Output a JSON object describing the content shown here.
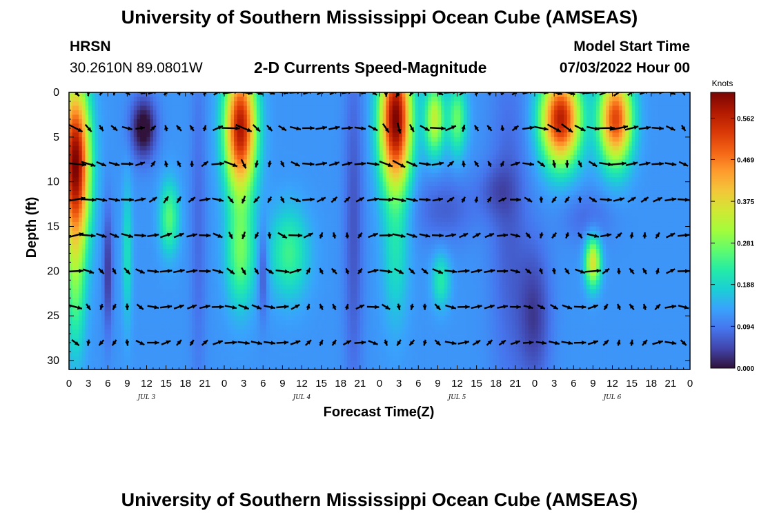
{
  "header": {
    "title": "University of Southern Mississippi Ocean Cube (AMSEAS)",
    "station": "HRSN",
    "coords": "30.2610N  89.0801W",
    "plot_title": "2-D Currents Speed-Magnitude",
    "model_start_label": "Model Start Time",
    "model_start_value": "07/03/2022 Hour 00"
  },
  "footer": {
    "repeated_title": "University of Southern Mississippi Ocean Cube (AMSEAS)"
  },
  "colors": {
    "background": "#ffffff",
    "arrow": "#000000",
    "colormap": [
      "#30123b",
      "#4145ab",
      "#4675ed",
      "#39a2fc",
      "#1bcfd4",
      "#24eca6",
      "#61fc6c",
      "#a4fc3b",
      "#d1e834",
      "#f3c63a",
      "#fe9b2d",
      "#f36315",
      "#d93806",
      "#b11901",
      "#7a0403"
    ]
  },
  "chart_data": {
    "type": "heatmap",
    "title": "2-D Currents Speed-Magnitude",
    "xlabel": "Forecast Time(Z)",
    "ylabel": "Depth (ft)",
    "xlim": [
      0,
      96
    ],
    "ylim": [
      0,
      31
    ],
    "y_inverted": true,
    "x_tick_labels": [
      "0",
      "3",
      "6",
      "9",
      "12",
      "15",
      "18",
      "21",
      "0",
      "3",
      "6",
      "9",
      "12",
      "15",
      "18",
      "21",
      "0",
      "3",
      "6",
      "9",
      "12",
      "15",
      "18",
      "21",
      "0",
      "3",
      "6",
      "9",
      "12",
      "15",
      "18",
      "21",
      "0"
    ],
    "y_ticks": [
      0,
      5,
      10,
      15,
      20,
      25,
      30
    ],
    "date_labels": [
      {
        "label": "JUL 3",
        "hour": 12
      },
      {
        "label": "JUL 4",
        "hour": 36
      },
      {
        "label": "JUL 5",
        "hour": 60
      },
      {
        "label": "JUL 6",
        "hour": 84
      }
    ],
    "colorbar": {
      "unit": "Knots",
      "min": 0.0,
      "max": 0.62,
      "tick_labels": [
        "0.562",
        "0.469",
        "0.375",
        "0.281",
        "0.188",
        "0.094",
        "0.000"
      ],
      "tick_values": [
        0.562,
        0.469,
        0.375,
        0.281,
        0.188,
        0.094,
        0.0
      ]
    },
    "vector_depths": [
      0,
      4,
      8,
      12,
      16,
      20,
      24,
      28
    ],
    "vector_hours_step": 2,
    "speed_model": {
      "description": "approximate speed field (knots) = base + sum of blobs",
      "base": 0.12,
      "blobs": [
        {
          "h": 1,
          "d": 8,
          "sh": 2.2,
          "sd": 9,
          "a": 0.5
        },
        {
          "h": 1,
          "d": 22,
          "sh": 1.6,
          "sd": 8,
          "a": 0.12
        },
        {
          "h": 11.5,
          "d": 4,
          "sh": 2,
          "sd": 3.5,
          "a": -0.14
        },
        {
          "h": 6,
          "d": 20,
          "sh": 0.7,
          "sd": 7,
          "a": -0.09
        },
        {
          "h": 9,
          "d": 18,
          "sh": 0.8,
          "sd": 8,
          "a": 0.08
        },
        {
          "h": 15.5,
          "d": 14,
          "sh": 1.5,
          "sd": 4,
          "a": 0.14
        },
        {
          "h": 20,
          "d": 15,
          "sh": 1.2,
          "sd": 20,
          "a": -0.04
        },
        {
          "h": 26.5,
          "d": 4,
          "sh": 2.4,
          "sd": 7,
          "a": 0.46
        },
        {
          "h": 26.5,
          "d": 18,
          "sh": 2.2,
          "sd": 6,
          "a": 0.15
        },
        {
          "h": 30,
          "d": 20,
          "sh": 0.7,
          "sd": 5,
          "a": -0.08
        },
        {
          "h": 34,
          "d": 18,
          "sh": 3,
          "sd": 5,
          "a": 0.12
        },
        {
          "h": 44,
          "d": 15,
          "sh": 1.5,
          "sd": 20,
          "a": -0.06
        },
        {
          "h": 50.5,
          "d": 3,
          "sh": 2.4,
          "sd": 7.5,
          "a": 0.5
        },
        {
          "h": 50.5,
          "d": 18,
          "sh": 2,
          "sd": 8,
          "a": 0.08
        },
        {
          "h": 56.5,
          "d": 3,
          "sh": 1.5,
          "sd": 4,
          "a": 0.22
        },
        {
          "h": 60,
          "d": 3,
          "sh": 1.5,
          "sd": 4,
          "a": 0.15
        },
        {
          "h": 57.5,
          "d": 21,
          "sh": 1.4,
          "sd": 3,
          "a": 0.1
        },
        {
          "h": 58,
          "d": 13,
          "sh": 5,
          "sd": 4,
          "a": -0.05
        },
        {
          "h": 66,
          "d": 11,
          "sh": 3,
          "sd": 3,
          "a": -0.04
        },
        {
          "h": 68,
          "d": 15,
          "sh": 3,
          "sd": 20,
          "a": -0.05
        },
        {
          "h": 76,
          "d": 3,
          "sh": 3,
          "sd": 5,
          "a": 0.45
        },
        {
          "h": 84.5,
          "d": 3,
          "sh": 2.5,
          "sd": 5,
          "a": 0.4
        },
        {
          "h": 81,
          "d": 19,
          "sh": 1.2,
          "sd": 2.8,
          "a": 0.25
        },
        {
          "h": 72,
          "d": 25,
          "sh": 2.5,
          "sd": 8,
          "a": -0.08
        },
        {
          "h": 80,
          "d": 14,
          "sh": 4,
          "sd": 3,
          "a": -0.04
        }
      ]
    }
  }
}
